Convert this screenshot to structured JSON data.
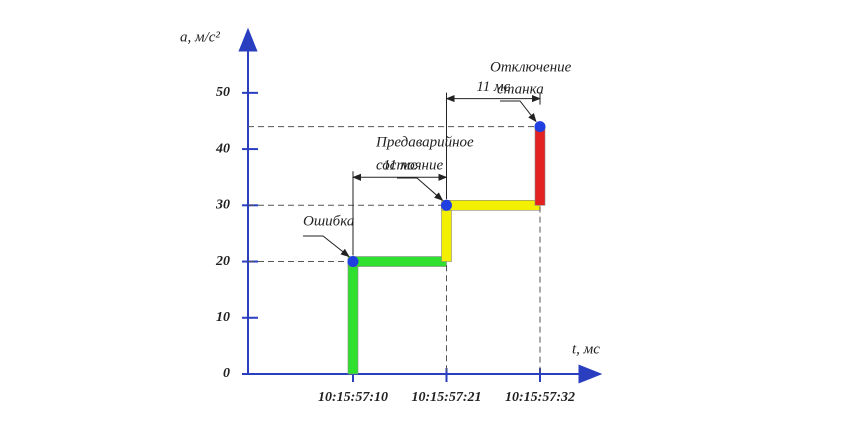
{
  "chart_data": {
    "type": "step",
    "ylabel": "a, м/с²",
    "xlabel": "t, мс",
    "categories": [
      "10:15:57:10",
      "10:15:57:21",
      "10:15:57:32"
    ],
    "values": [
      20,
      30,
      44
    ],
    "colors": [
      "#2fe02f",
      "#f2f000",
      "#e32222"
    ],
    "marker_color": "#1f3fe0",
    "ylim": [
      0,
      61
    ],
    "yticks": [
      0,
      10,
      20,
      30,
      40,
      50
    ],
    "annotations": [
      [
        "Ошибка"
      ],
      [
        "Предаварийное",
        "состояние"
      ],
      [
        "Отключение",
        "станка"
      ]
    ],
    "interval_labels": [
      "11 мс",
      "11 мс"
    ]
  }
}
